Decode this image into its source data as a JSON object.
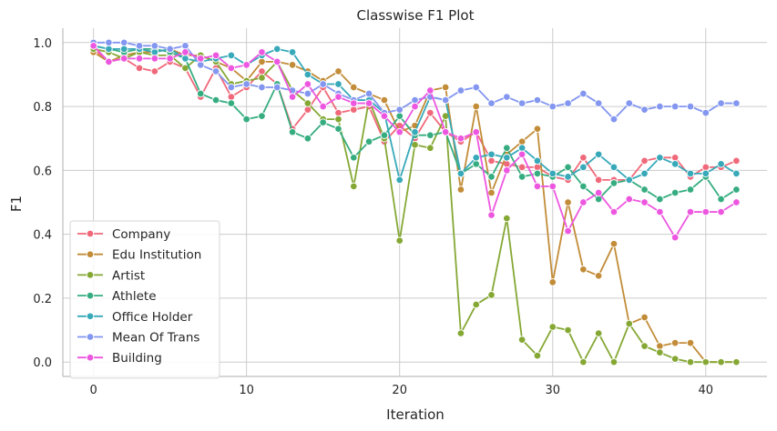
{
  "chart_data": {
    "type": "line",
    "title": "Classwise F1 Plot",
    "xlabel": "Iteration",
    "ylabel": "F1",
    "xlim": [
      -2,
      44
    ],
    "ylim": [
      -0.045,
      1.045
    ],
    "xticks": [
      0,
      10,
      20,
      30,
      40
    ],
    "yticks": [
      0.0,
      0.2,
      0.4,
      0.6,
      0.8,
      1.0
    ],
    "grid": true,
    "legend_position": "lower-left",
    "x": [
      0,
      1,
      2,
      3,
      4,
      5,
      6,
      7,
      8,
      9,
      10,
      11,
      12,
      13,
      14,
      15,
      16,
      17,
      18,
      19,
      20,
      21,
      22,
      23,
      24,
      25,
      26,
      27,
      28,
      29,
      30,
      31,
      32,
      33,
      34,
      35,
      36,
      37,
      38,
      39,
      40,
      41,
      42
    ],
    "series": [
      {
        "name": "Company",
        "color": "#f0697a",
        "values": [
          0.98,
          0.94,
          0.95,
          0.92,
          0.91,
          0.94,
          0.92,
          0.83,
          0.92,
          0.83,
          0.86,
          0.91,
          0.87,
          0.73,
          0.79,
          0.86,
          0.78,
          0.79,
          0.8,
          0.69,
          0.74,
          0.7,
          0.78,
          0.72,
          0.69,
          0.72,
          0.63,
          0.62,
          0.61,
          0.61,
          0.58,
          0.57,
          0.64,
          0.57,
          0.57,
          0.57,
          0.63,
          0.64,
          0.64,
          0.58,
          0.61,
          0.61,
          0.63
        ]
      },
      {
        "name": "Edu Institution",
        "color": "#c28c38",
        "values": [
          0.97,
          0.94,
          0.96,
          0.97,
          0.97,
          0.98,
          0.96,
          0.96,
          0.94,
          0.92,
          0.88,
          0.94,
          0.94,
          0.93,
          0.91,
          0.88,
          0.91,
          0.86,
          0.84,
          0.82,
          0.72,
          0.74,
          0.85,
          0.86,
          0.54,
          0.8,
          0.53,
          0.65,
          0.69,
          0.73,
          0.25,
          0.5,
          0.29,
          0.27,
          0.37,
          0.12,
          0.14,
          0.05,
          0.06,
          0.06,
          0.0,
          0.0,
          0.0
        ]
      },
      {
        "name": "Artist",
        "color": "#85a834",
        "values": [
          0.98,
          0.97,
          0.95,
          0.97,
          0.96,
          0.96,
          0.92,
          0.96,
          0.94,
          0.87,
          0.88,
          0.89,
          0.94,
          0.85,
          0.81,
          0.76,
          0.76,
          0.55,
          0.82,
          0.7,
          0.38,
          0.68,
          0.67,
          0.77,
          0.09,
          0.18,
          0.21,
          0.45,
          0.07,
          0.02,
          0.11,
          0.1,
          0.0,
          0.09,
          0.0,
          0.12,
          0.05,
          0.03,
          0.01,
          0.0,
          0.0,
          0.0,
          0.0
        ]
      },
      {
        "name": "Athlete",
        "color": "#36ad80",
        "values": [
          0.99,
          0.98,
          0.97,
          0.98,
          0.98,
          0.97,
          0.95,
          0.84,
          0.82,
          0.81,
          0.76,
          0.77,
          0.87,
          0.72,
          0.7,
          0.75,
          0.73,
          0.64,
          0.69,
          0.71,
          0.77,
          0.71,
          0.71,
          0.72,
          0.59,
          0.62,
          0.58,
          0.67,
          0.58,
          0.59,
          0.58,
          0.61,
          0.55,
          0.51,
          0.56,
          0.57,
          0.54,
          0.51,
          0.53,
          0.54,
          0.58,
          0.51,
          0.54
        ]
      },
      {
        "name": "Office Holder",
        "color": "#37a9b9",
        "values": [
          0.99,
          0.98,
          0.98,
          0.98,
          0.97,
          0.98,
          0.95,
          0.94,
          0.95,
          0.96,
          0.93,
          0.96,
          0.98,
          0.97,
          0.9,
          0.87,
          0.87,
          0.82,
          0.82,
          0.78,
          0.57,
          0.72,
          0.83,
          0.82,
          0.59,
          0.64,
          0.65,
          0.64,
          0.67,
          0.63,
          0.59,
          0.58,
          0.61,
          0.65,
          0.61,
          0.57,
          0.59,
          0.64,
          0.62,
          0.59,
          0.59,
          0.62,
          0.59
        ]
      },
      {
        "name": "Mean Of Trans",
        "color": "#8396f0",
        "values": [
          1.0,
          1.0,
          1.0,
          0.99,
          0.99,
          0.98,
          0.99,
          0.93,
          0.91,
          0.86,
          0.87,
          0.86,
          0.86,
          0.85,
          0.84,
          0.87,
          0.84,
          0.82,
          0.84,
          0.78,
          0.79,
          0.82,
          0.83,
          0.82,
          0.85,
          0.86,
          0.81,
          0.83,
          0.81,
          0.82,
          0.8,
          0.81,
          0.84,
          0.81,
          0.76,
          0.81,
          0.79,
          0.8,
          0.8,
          0.8,
          0.78,
          0.81,
          0.81
        ]
      },
      {
        "name": "Building",
        "color": "#ed57e0",
        "values": [
          0.99,
          0.94,
          0.95,
          0.95,
          0.95,
          0.95,
          0.97,
          0.95,
          0.96,
          0.92,
          0.93,
          0.97,
          0.94,
          0.83,
          0.87,
          0.8,
          0.83,
          0.81,
          0.81,
          0.77,
          0.72,
          0.8,
          0.85,
          0.72,
          0.7,
          0.72,
          0.46,
          0.6,
          0.65,
          0.55,
          0.55,
          0.41,
          0.5,
          0.53,
          0.47,
          0.51,
          0.5,
          0.47,
          0.39,
          0.47,
          0.47,
          0.47,
          0.5
        ]
      }
    ]
  }
}
